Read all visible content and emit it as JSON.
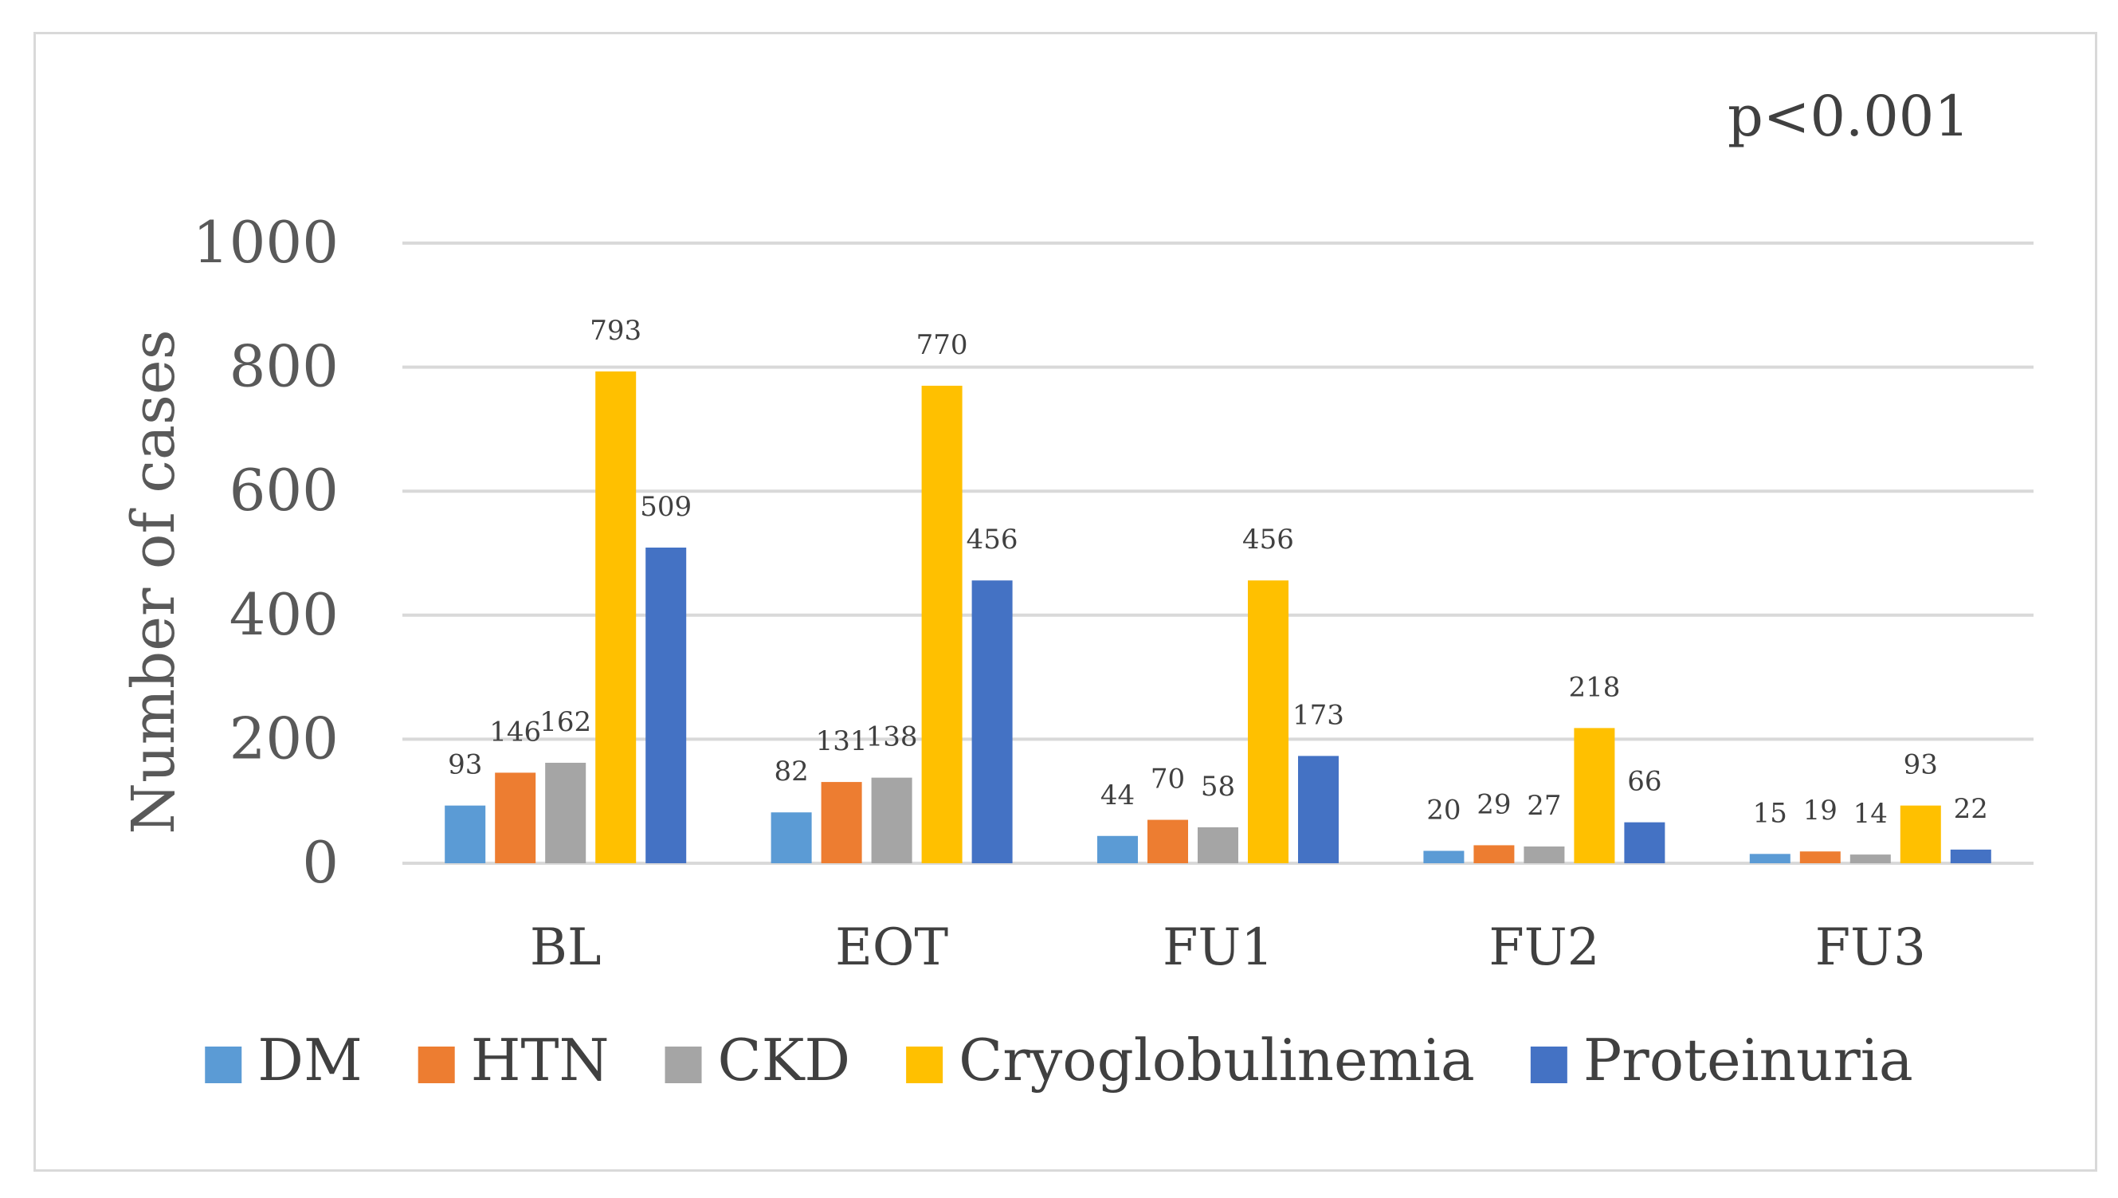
{
  "chart_data": {
    "type": "bar",
    "title": "",
    "annotation": "p<0.001",
    "xlabel": "",
    "ylabel": "Number of cases",
    "ylim": [
      0,
      1000
    ],
    "yticks": [
      0,
      200,
      400,
      600,
      800,
      1000
    ],
    "grid": true,
    "legend_position": "bottom",
    "categories": [
      "BL",
      "EOT",
      "FU1",
      "FU2",
      "FU3"
    ],
    "series": [
      {
        "name": "DM",
        "color": "#5b9bd5",
        "values": [
          93,
          82,
          44,
          20,
          15
        ]
      },
      {
        "name": "HTN",
        "color": "#ed7d31",
        "values": [
          146,
          131,
          70,
          29,
          19
        ]
      },
      {
        "name": "CKD",
        "color": "#a5a5a5",
        "values": [
          162,
          138,
          58,
          27,
          14
        ]
      },
      {
        "name": "Cryoglobulinemia",
        "color": "#ffc000",
        "values": [
          793,
          770,
          456,
          218,
          93
        ]
      },
      {
        "name": "Proteinuria",
        "color": "#4472c4",
        "values": [
          509,
          456,
          173,
          66,
          22
        ]
      }
    ]
  }
}
